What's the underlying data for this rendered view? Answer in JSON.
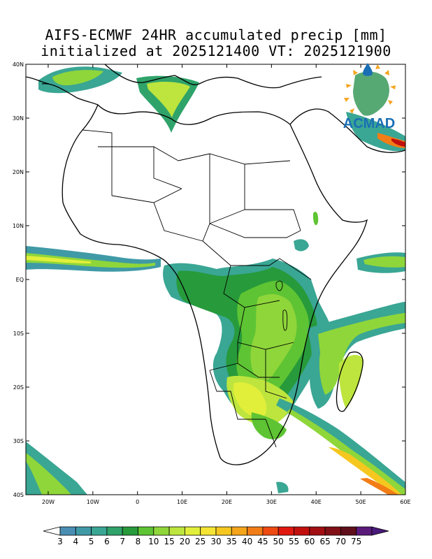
{
  "title": {
    "line1": "AIFS-ECMWF 24HR accumulated precip [mm]",
    "line2": "initialized at 2025121400 VT: 2025121900"
  },
  "lat_labels": [
    "40N",
    "30N",
    "20N",
    "10N",
    "EQ",
    "10S",
    "20S",
    "30S",
    "40S"
  ],
  "lon_labels": [
    "20W",
    "10W",
    "0",
    "10E",
    "20E",
    "30E",
    "40E",
    "50E",
    "60E"
  ],
  "colorbar": {
    "labels": [
      "3",
      "4",
      "5",
      "6",
      "7",
      "8",
      "10",
      "15",
      "20",
      "25",
      "30",
      "35",
      "40",
      "45",
      "50",
      "55",
      "60",
      "65",
      "70",
      "75"
    ],
    "colors": [
      "#4a8fb3",
      "#3f9aa6",
      "#3aa694",
      "#2fa36a",
      "#279a3b",
      "#5ec433",
      "#8fd63a",
      "#bde53d",
      "#e2ef3a",
      "#f5e433",
      "#f5c71f",
      "#f4a51a",
      "#f27d16",
      "#ee4a12",
      "#e0180f",
      "#c2100e",
      "#a20e12",
      "#811016",
      "#5f0f1a",
      "#5a1a7a"
    ]
  },
  "logo": {
    "text": "ACMAD"
  },
  "colors": {
    "ocean": "#ffffff",
    "coast": "#000000",
    "logo_blue": "#1a6fb4"
  }
}
